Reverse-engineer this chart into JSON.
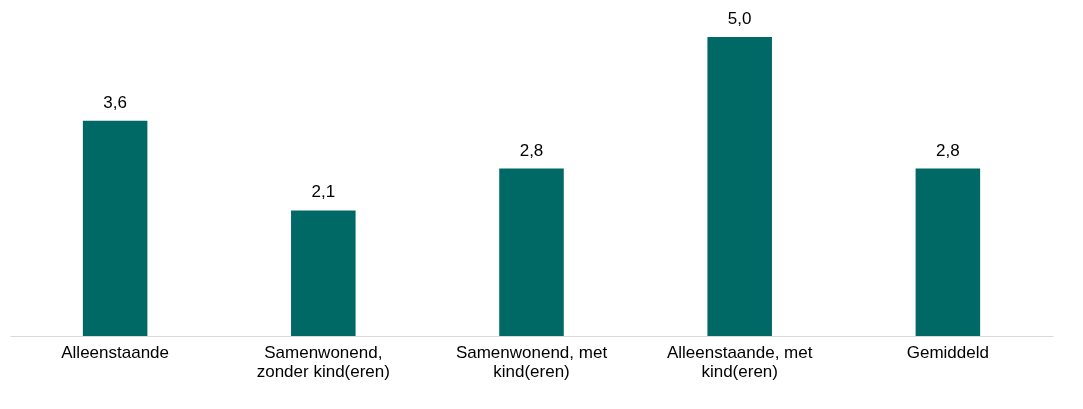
{
  "chart_data": {
    "type": "bar",
    "categories": [
      "Alleenstaande",
      "Samenwonend, zonder kind(eren)",
      "Samenwonend, met kind(eren)",
      "Alleenstaande, met kind(eren)",
      "Gemiddeld"
    ],
    "values": [
      3.6,
      2.1,
      2.8,
      5.0,
      2.8
    ],
    "value_labels": [
      "3,6",
      "2,1",
      "2,8",
      "5,0",
      "2,8"
    ],
    "color": "#006865",
    "grid": false
  }
}
